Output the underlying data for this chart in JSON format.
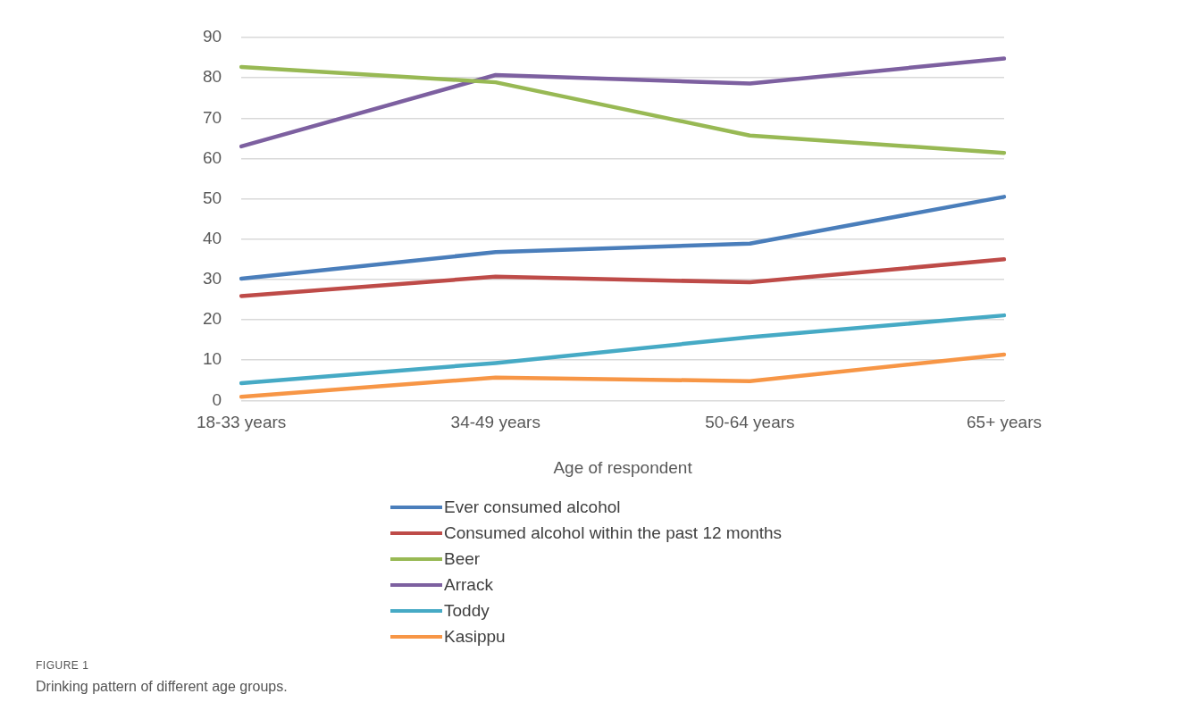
{
  "chart_data": {
    "type": "line",
    "xlabel": "Age of respondent",
    "categories": [
      "18-33 years",
      "34-49 years",
      "50-64 years",
      "65+ years"
    ],
    "series": [
      {
        "name": "Ever consumed alcohol",
        "color": "#4a7ebb",
        "values": [
          30.2,
          36.8,
          38.9,
          50.5
        ]
      },
      {
        "name": "Consumed alcohol within the past 12 months",
        "color": "#be4b48",
        "values": [
          25.9,
          30.7,
          29.3,
          35
        ]
      },
      {
        "name": "Beer",
        "color": "#98b954",
        "values": [
          82.7,
          78.9,
          65.7,
          61.4
        ]
      },
      {
        "name": "Arrack",
        "color": "#7d60a0",
        "values": [
          63,
          80.7,
          78.6,
          84.8
        ]
      },
      {
        "name": "Toddy",
        "color": "#46aac5",
        "values": [
          4.3,
          9.3,
          15.7,
          21.1
        ]
      },
      {
        "name": "Kasippu",
        "color": "#f79646",
        "values": [
          0.9,
          5.7,
          4.8,
          11.4
        ]
      }
    ],
    "ylim": [
      0,
      90
    ],
    "yticks": [
      0,
      10,
      20,
      30,
      40,
      50,
      60,
      70,
      80,
      90
    ],
    "grid": "y",
    "legend": "bottom",
    "marker": "none",
    "line_style": "solid",
    "annotations": [
      "FIGURE 1",
      "Drinking pattern of different age groups."
    ]
  }
}
